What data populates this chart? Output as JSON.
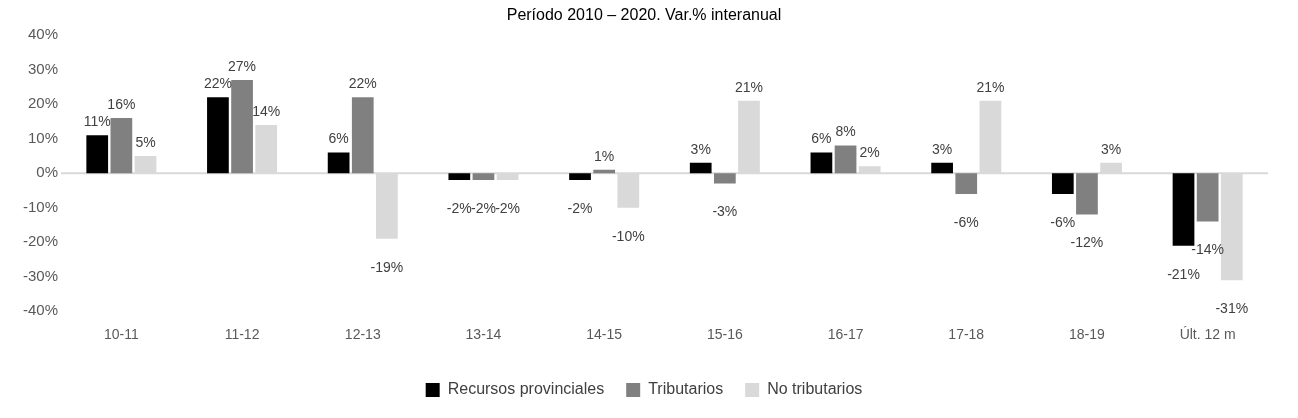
{
  "chart_data": {
    "type": "bar",
    "title": "Período 2010 – 2020. Var.% interanual",
    "categories": [
      "10-11",
      "11-12",
      "12-13",
      "13-14",
      "14-15",
      "15-16",
      "16-17",
      "17-18",
      "18-19",
      "Últ. 12 m"
    ],
    "series": [
      {
        "name": "Recursos provinciales",
        "color": "#000000",
        "values": [
          11,
          22,
          6,
          -2,
          -2,
          3,
          6,
          3,
          -6,
          -21
        ],
        "value_labels": [
          "11%",
          "22%",
          "6%",
          "-2%",
          "-2%",
          "3%",
          "6%",
          "3%",
          "-6%",
          "-21%"
        ]
      },
      {
        "name": "Tributarios",
        "color": "#808080",
        "values": [
          16,
          27,
          22,
          -2,
          1,
          -3,
          8,
          -6,
          -12,
          -14
        ],
        "value_labels": [
          "16%",
          "27%",
          "22%",
          "-2%",
          "1%",
          "-3%",
          "8%",
          "-6%",
          "-12%",
          "-14%"
        ]
      },
      {
        "name": "No tributarios",
        "color": "#d9d9d9",
        "values": [
          5,
          14,
          -19,
          -2,
          -10,
          21,
          2,
          21,
          3,
          -31
        ],
        "value_labels": [
          "5%",
          "14%",
          "-19%",
          "-2%",
          "-10%",
          "21%",
          "2%",
          "21%",
          "3%",
          "-31%"
        ]
      }
    ],
    "ylim": [
      -40,
      40
    ],
    "yticks": [
      {
        "value": -40,
        "label": "-40%"
      },
      {
        "value": -30,
        "label": "-30%"
      },
      {
        "value": -20,
        "label": "-20%"
      },
      {
        "value": -10,
        "label": "-10%"
      },
      {
        "value": 0,
        "label": "0%"
      },
      {
        "value": 10,
        "label": "10%"
      },
      {
        "value": 20,
        "label": "20%"
      },
      {
        "value": 30,
        "label": "30%"
      },
      {
        "value": 40,
        "label": "40%"
      }
    ],
    "legend": "bottom"
  }
}
